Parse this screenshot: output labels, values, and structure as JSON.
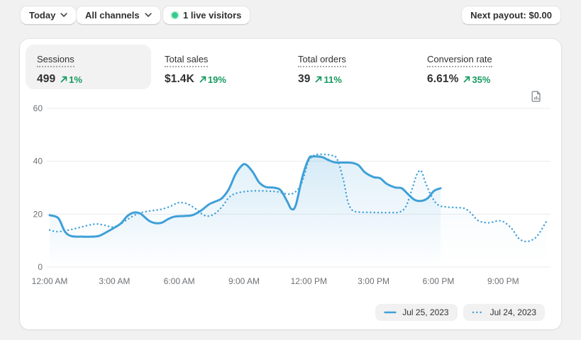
{
  "topbar": {
    "date_range": "Today",
    "channels": "All channels",
    "live_visitors": "1 live visitors",
    "next_payout": "Next payout: $0.00"
  },
  "metrics": [
    {
      "label": "Sessions",
      "value": "499",
      "delta": "1%",
      "selected": true
    },
    {
      "label": "Total sales",
      "value": "$1.4K",
      "delta": "19%",
      "selected": false
    },
    {
      "label": "Total orders",
      "value": "39",
      "delta": "11%",
      "selected": false
    },
    {
      "label": "Conversion rate",
      "value": "6.61%",
      "delta": "35%",
      "selected": false
    }
  ],
  "colors": {
    "line_blue": "#3fa0d8",
    "success_green": "#149a5e",
    "live_dot_green": "#36cb8c",
    "axis_text": "#6d7175",
    "gridline": "#ebebeb",
    "page_bg": "#f1f1f1",
    "card_bg": "#ffffff"
  },
  "chart_data": {
    "type": "line",
    "metric": "Sessions",
    "ylim": [
      0,
      60
    ],
    "yticks": [
      0,
      20,
      40,
      60
    ],
    "x_unit": "hour_of_day",
    "x_tick_hours": [
      0,
      3,
      6,
      9,
      12,
      15,
      18,
      21
    ],
    "x_tick_labels": [
      "12:00 AM",
      "3:00 AM",
      "6:00 AM",
      "9:00 AM",
      "12:00 PM",
      "3:00 PM",
      "6:00 PM",
      "9:00 PM"
    ],
    "grid": "horizontal",
    "legend_position": "bottom-right",
    "series": [
      {
        "name": "Jul 25, 2023",
        "style": "solid",
        "x": [
          0,
          0.4,
          0.7,
          1.0,
          1.5,
          2.0,
          2.3,
          2.7,
          3.0,
          3.3,
          3.6,
          3.9,
          4.2,
          4.6,
          4.9,
          5.2,
          5.5,
          5.8,
          6.2,
          6.6,
          7.0,
          7.4,
          7.8,
          8.0,
          8.3,
          8.6,
          8.9,
          9.1,
          9.4,
          9.7,
          10.0,
          10.4,
          10.7,
          11.0,
          11.2,
          11.4,
          11.7,
          12.0,
          12.2,
          12.6,
          12.9,
          13.2,
          13.6,
          14.0,
          14.3,
          14.6,
          15.0,
          15.3,
          15.6,
          16.0,
          16.3,
          16.6,
          16.9,
          17.2,
          17.5,
          17.8,
          18.1
        ],
        "values": [
          19.6,
          18.5,
          13.5,
          11.7,
          11.5,
          11.5,
          11.8,
          13.5,
          14.9,
          16.5,
          19.3,
          20.6,
          20.2,
          17.5,
          16.6,
          16.8,
          18.2,
          19.1,
          19.3,
          19.6,
          21.3,
          23.8,
          25.2,
          26.2,
          29.5,
          35.0,
          38.4,
          38.7,
          36.0,
          32.0,
          30.3,
          30.0,
          29.0,
          24.8,
          21.9,
          23.5,
          34.0,
          41.0,
          41.8,
          41.6,
          40.5,
          39.6,
          39.5,
          39.4,
          38.5,
          35.8,
          34.0,
          33.6,
          31.5,
          30.1,
          29.8,
          27.5,
          25.4,
          25.0,
          26.0,
          28.8,
          29.8
        ]
      },
      {
        "name": "Jul 24, 2023",
        "style": "dotted",
        "x": [
          0,
          0.3,
          0.7,
          1.1,
          1.5,
          1.9,
          2.2,
          2.6,
          2.9,
          3.2,
          3.6,
          4.0,
          4.4,
          4.8,
          5.2,
          5.6,
          5.9,
          6.1,
          6.4,
          6.8,
          7.1,
          7.4,
          7.7,
          8.0,
          8.3,
          8.6,
          9.0,
          9.4,
          9.8,
          10.2,
          10.6,
          11.0,
          11.3,
          11.6,
          11.8,
          12.0,
          12.3,
          12.7,
          13.0,
          13.3,
          13.6,
          13.8,
          14.0,
          14.3,
          14.8,
          15.3,
          15.8,
          16.2,
          16.5,
          16.8,
          17.0,
          17.2,
          17.4,
          17.7,
          18.0,
          18.4,
          18.8,
          19.2,
          19.5,
          19.8,
          20.1,
          20.4,
          20.7,
          21.0,
          21.4,
          21.7,
          22.0,
          22.3,
          22.6,
          23.0
        ],
        "values": [
          14.0,
          13.4,
          13.7,
          14.4,
          15.2,
          16.0,
          16.3,
          15.7,
          15.1,
          15.9,
          18.0,
          19.9,
          20.9,
          21.4,
          21.9,
          23.0,
          24.2,
          24.4,
          23.8,
          21.8,
          19.8,
          19.3,
          20.5,
          23.0,
          26.3,
          27.8,
          28.5,
          28.8,
          28.8,
          28.7,
          28.4,
          27.6,
          28.0,
          30.5,
          35.0,
          40.3,
          42.4,
          42.6,
          42.3,
          41.0,
          33.0,
          25.0,
          21.6,
          20.8,
          20.7,
          20.6,
          20.6,
          20.8,
          23.0,
          30.0,
          35.0,
          36.4,
          32.0,
          26.5,
          23.4,
          22.7,
          22.5,
          22.2,
          20.5,
          17.8,
          16.9,
          16.8,
          17.4,
          17.2,
          14.5,
          11.0,
          9.7,
          10.1,
          12.0,
          17.3
        ]
      }
    ]
  }
}
